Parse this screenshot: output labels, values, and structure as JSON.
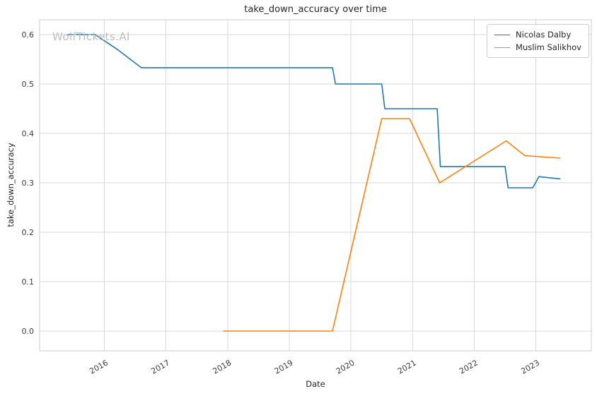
{
  "watermark": {
    "text": "WolfTickets.AI"
  },
  "chart_data": {
    "type": "line",
    "title": "take_down_accuracy over time",
    "xlabel": "Date",
    "ylabel": "take_down_accuracy",
    "xlim": [
      2014.95,
      2023.9
    ],
    "ylim": [
      -0.04,
      0.63
    ],
    "x_ticks": [
      2016,
      2017,
      2018,
      2019,
      2020,
      2021,
      2022,
      2023
    ],
    "y_ticks": [
      0.0,
      0.1,
      0.2,
      0.3,
      0.4,
      0.5,
      0.6
    ],
    "grid": true,
    "grid_color": "#d9d9d9",
    "spine_color": "#cccccc",
    "tick_label_color": "#3c3c3c",
    "legend_position": "upper right",
    "series": [
      {
        "id": "nicolas-dalby",
        "name": "Nicolas Dalby",
        "color": "#1f77b4",
        "points": [
          [
            2015.4,
            0.6
          ],
          [
            2015.85,
            0.6
          ],
          [
            2016.2,
            0.571
          ],
          [
            2016.6,
            0.533
          ],
          [
            2019.7,
            0.533
          ],
          [
            2019.75,
            0.5
          ],
          [
            2020.5,
            0.5
          ],
          [
            2020.55,
            0.45
          ],
          [
            2021.4,
            0.45
          ],
          [
            2021.45,
            0.333
          ],
          [
            2022.5,
            0.333
          ],
          [
            2022.55,
            0.29
          ],
          [
            2022.95,
            0.29
          ],
          [
            2023.05,
            0.3125
          ],
          [
            2023.4,
            0.308
          ]
        ]
      },
      {
        "id": "muslim-salikhov",
        "name": "Muslim Salikhov",
        "color": "#ff7f0e",
        "points": [
          [
            2017.93,
            0.0
          ],
          [
            2019.7,
            0.0
          ],
          [
            2020.5,
            0.43
          ],
          [
            2020.95,
            0.43
          ],
          [
            2021.44,
            0.3
          ],
          [
            2022.52,
            0.385
          ],
          [
            2022.82,
            0.355
          ],
          [
            2023.4,
            0.35
          ]
        ]
      }
    ]
  }
}
